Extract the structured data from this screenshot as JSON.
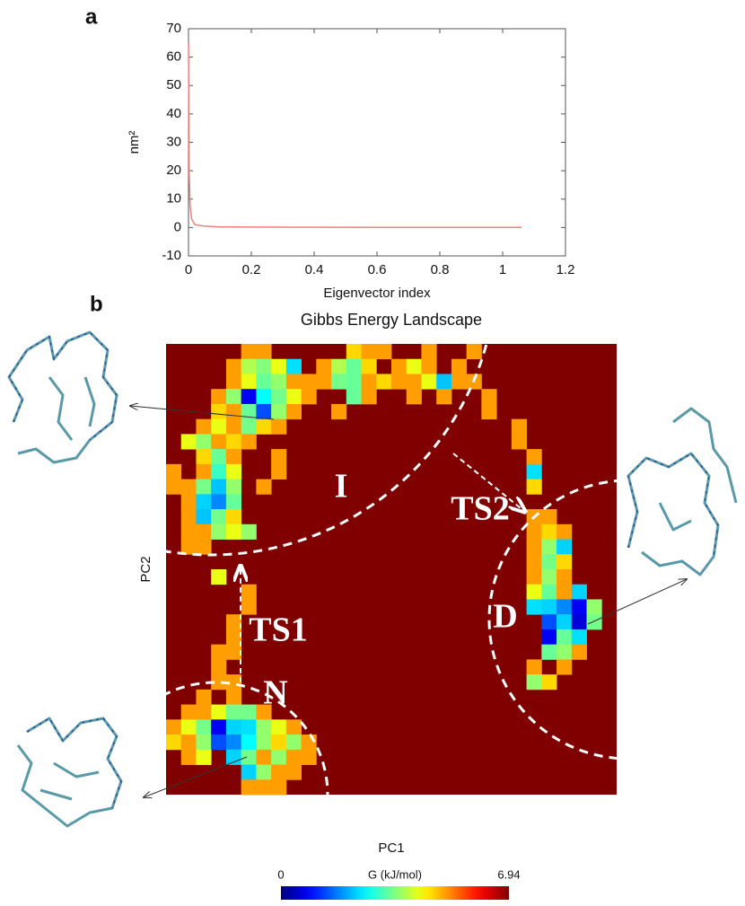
{
  "chart_data": [
    {
      "type": "line",
      "panel": "a",
      "x_label": "Eigenvector index",
      "y_label": "nm²",
      "x": [
        0,
        0.002,
        0.005,
        0.01,
        0.02,
        0.05,
        0.1,
        0.3,
        0.6,
        1.06
      ],
      "series": [
        {
          "color": "#f08080",
          "values": [
            65,
            20,
            8,
            3,
            1,
            0.5,
            0.2,
            0.1,
            0.05,
            0.02
          ]
        }
      ],
      "xlim": [
        0,
        1.2
      ],
      "xticks": [
        0,
        0.2,
        0.4,
        0.6,
        0.8,
        1,
        1.2
      ],
      "ylim": [
        -10,
        70
      ],
      "yticks": [
        -10,
        0,
        10,
        20,
        30,
        40,
        50,
        60,
        70
      ]
    },
    {
      "type": "heatmap",
      "panel": "b",
      "title": "Gibbs Energy Landscape",
      "x_label": "PC1",
      "y_label": "PC2",
      "colorbar_label": "G (kJ/mol)",
      "clim": [
        0,
        6.94
      ],
      "cticks": [
        0,
        6.94
      ],
      "annotations": [
        "I",
        "TS2",
        "D",
        "TS1",
        "N"
      ],
      "cells": [
        [
          5,
          0,
          5.0
        ],
        [
          6,
          0,
          5.0
        ],
        [
          12,
          0,
          4.6
        ],
        [
          13,
          0,
          5.0
        ],
        [
          14,
          0,
          5.0
        ],
        [
          17,
          0,
          5.0
        ],
        [
          20,
          0,
          5.0
        ],
        [
          4,
          1,
          5.0
        ],
        [
          5,
          1,
          3.8
        ],
        [
          6,
          1,
          3.5
        ],
        [
          7,
          1,
          4.2
        ],
        [
          8,
          1,
          2.4
        ],
        [
          10,
          1,
          5.0
        ],
        [
          11,
          1,
          3.8
        ],
        [
          12,
          1,
          3.3
        ],
        [
          13,
          1,
          4.6
        ],
        [
          15,
          1,
          5.0
        ],
        [
          16,
          1,
          4.2
        ],
        [
          17,
          1,
          5.0
        ],
        [
          19,
          1,
          5.0
        ],
        [
          4,
          2,
          5.0
        ],
        [
          5,
          2,
          4.2
        ],
        [
          6,
          2,
          3.3
        ],
        [
          7,
          2,
          3.6
        ],
        [
          8,
          2,
          5.0
        ],
        [
          9,
          2,
          5.0
        ],
        [
          10,
          2,
          5.0
        ],
        [
          11,
          2,
          3.4
        ],
        [
          12,
          2,
          3.3
        ],
        [
          13,
          2,
          5.0
        ],
        [
          14,
          2,
          4.6
        ],
        [
          15,
          2,
          5.0
        ],
        [
          16,
          2,
          5.0
        ],
        [
          17,
          2,
          4.2
        ],
        [
          18,
          2,
          2.2
        ],
        [
          19,
          2,
          5.0
        ],
        [
          20,
          2,
          5.0
        ],
        [
          3,
          3,
          5.0
        ],
        [
          4,
          3,
          3.6
        ],
        [
          5,
          3,
          0.8
        ],
        [
          6,
          3,
          2.6
        ],
        [
          7,
          3,
          3.4
        ],
        [
          8,
          3,
          4.2
        ],
        [
          9,
          3,
          5.0
        ],
        [
          12,
          3,
          3.3
        ],
        [
          13,
          3,
          5.0
        ],
        [
          16,
          3,
          5.0
        ],
        [
          18,
          3,
          5.0
        ],
        [
          21,
          3,
          5.0
        ],
        [
          3,
          4,
          4.6
        ],
        [
          4,
          4,
          5.0
        ],
        [
          5,
          4,
          3.3
        ],
        [
          6,
          4,
          1.4
        ],
        [
          7,
          4,
          3.6
        ],
        [
          8,
          4,
          5.0
        ],
        [
          11,
          4,
          5.0
        ],
        [
          21,
          4,
          5.0
        ],
        [
          2,
          5,
          5.0
        ],
        [
          3,
          5,
          4.2
        ],
        [
          4,
          5,
          5.0
        ],
        [
          5,
          5,
          3.4
        ],
        [
          6,
          5,
          4.6
        ],
        [
          7,
          5,
          5.0
        ],
        [
          23,
          5,
          5.0
        ],
        [
          1,
          6,
          4.2
        ],
        [
          2,
          6,
          3.6
        ],
        [
          3,
          6,
          5.0
        ],
        [
          4,
          6,
          4.6
        ],
        [
          5,
          6,
          5.0
        ],
        [
          23,
          6,
          5.0
        ],
        [
          2,
          7,
          4.6
        ],
        [
          3,
          7,
          3.3
        ],
        [
          4,
          7,
          5.0
        ],
        [
          7,
          7,
          5.0
        ],
        [
          24,
          7,
          5.0
        ],
        [
          0,
          8,
          5.0
        ],
        [
          2,
          8,
          5.0
        ],
        [
          3,
          8,
          3.0
        ],
        [
          4,
          8,
          4.2
        ],
        [
          7,
          8,
          5.0
        ],
        [
          24,
          8,
          2.4
        ],
        [
          0,
          9,
          5.0
        ],
        [
          1,
          9,
          5.0
        ],
        [
          2,
          9,
          3.4
        ],
        [
          3,
          9,
          2.2
        ],
        [
          4,
          9,
          3.6
        ],
        [
          6,
          9,
          5.0
        ],
        [
          24,
          9,
          4.6
        ],
        [
          1,
          10,
          5.0
        ],
        [
          2,
          10,
          2.3
        ],
        [
          3,
          10,
          1.8
        ],
        [
          4,
          10,
          3.3
        ],
        [
          1,
          11,
          5.0
        ],
        [
          2,
          11,
          2.2
        ],
        [
          3,
          11,
          3.4
        ],
        [
          4,
          11,
          4.6
        ],
        [
          24,
          11,
          5.0
        ],
        [
          25,
          11,
          5.0
        ],
        [
          1,
          12,
          5.0
        ],
        [
          2,
          12,
          5.0
        ],
        [
          3,
          12,
          3.6
        ],
        [
          4,
          12,
          4.2
        ],
        [
          5,
          12,
          3.6
        ],
        [
          24,
          12,
          5.0
        ],
        [
          25,
          12,
          4.6
        ],
        [
          26,
          12,
          5.0
        ],
        [
          1,
          13,
          5.0
        ],
        [
          2,
          13,
          5.0
        ],
        [
          24,
          13,
          5.0
        ],
        [
          25,
          13,
          3.6
        ],
        [
          26,
          13,
          2.3
        ],
        [
          24,
          14,
          5.0
        ],
        [
          25,
          14,
          3.4
        ],
        [
          26,
          14,
          4.6
        ],
        [
          3,
          15,
          4.2
        ],
        [
          24,
          15,
          5.0
        ],
        [
          25,
          15,
          3.6
        ],
        [
          26,
          15,
          5.0
        ],
        [
          5,
          16,
          5.0
        ],
        [
          24,
          16,
          4.2
        ],
        [
          25,
          16,
          3.3
        ],
        [
          26,
          16,
          5.0
        ],
        [
          27,
          16,
          2.3
        ],
        [
          5,
          17,
          5.0
        ],
        [
          24,
          17,
          2.4
        ],
        [
          25,
          17,
          2.3
        ],
        [
          26,
          17,
          1.8
        ],
        [
          27,
          17,
          0.8
        ],
        [
          28,
          17,
          3.6
        ],
        [
          4,
          18,
          5.0
        ],
        [
          25,
          18,
          1.4
        ],
        [
          26,
          18,
          2.3
        ],
        [
          27,
          18,
          0.6
        ],
        [
          28,
          18,
          3.4
        ],
        [
          4,
          19,
          5.0
        ],
        [
          25,
          19,
          0.8
        ],
        [
          26,
          19,
          3.3
        ],
        [
          27,
          19,
          2.4
        ],
        [
          3,
          20,
          5.0
        ],
        [
          4,
          20,
          5.0
        ],
        [
          25,
          20,
          3.3
        ],
        [
          26,
          20,
          3.6
        ],
        [
          27,
          20,
          5.0
        ],
        [
          3,
          21,
          5.0
        ],
        [
          24,
          21,
          5.0
        ],
        [
          26,
          21,
          5.0
        ],
        [
          3,
          22,
          5.0
        ],
        [
          4,
          22,
          5.0
        ],
        [
          24,
          22,
          3.6
        ],
        [
          25,
          22,
          4.6
        ],
        [
          2,
          23,
          5.0
        ],
        [
          4,
          23,
          5.0
        ],
        [
          1,
          24,
          5.0
        ],
        [
          2,
          24,
          5.0
        ],
        [
          3,
          24,
          4.2
        ],
        [
          4,
          24,
          3.4
        ],
        [
          5,
          24,
          3.4
        ],
        [
          6,
          24,
          5.0
        ],
        [
          0,
          25,
          5.0
        ],
        [
          1,
          25,
          4.2
        ],
        [
          2,
          25,
          3.4
        ],
        [
          3,
          25,
          0.8
        ],
        [
          4,
          25,
          2.3
        ],
        [
          5,
          25,
          2.4
        ],
        [
          6,
          25,
          3.6
        ],
        [
          7,
          25,
          4.2
        ],
        [
          8,
          25,
          5.0
        ],
        [
          0,
          26,
          4.6
        ],
        [
          1,
          26,
          5.0
        ],
        [
          2,
          26,
          3.6
        ],
        [
          3,
          26,
          1.4
        ],
        [
          4,
          26,
          1.8
        ],
        [
          5,
          26,
          2.6
        ],
        [
          6,
          26,
          3.6
        ],
        [
          7,
          26,
          4.6
        ],
        [
          8,
          26,
          3.6
        ],
        [
          9,
          26,
          5.0
        ],
        [
          1,
          27,
          5.0
        ],
        [
          2,
          27,
          4.2
        ],
        [
          4,
          27,
          2.3
        ],
        [
          5,
          27,
          3.4
        ],
        [
          6,
          27,
          5.0
        ],
        [
          7,
          27,
          3.6
        ],
        [
          8,
          27,
          5.0
        ],
        [
          9,
          27,
          5.0
        ],
        [
          5,
          28,
          2.3
        ],
        [
          6,
          28,
          3.6
        ],
        [
          7,
          28,
          5.0
        ],
        [
          8,
          28,
          5.0
        ],
        [
          5,
          29,
          5.0
        ],
        [
          6,
          29,
          5.0
        ],
        [
          7,
          29,
          5.0
        ]
      ]
    }
  ]
}
